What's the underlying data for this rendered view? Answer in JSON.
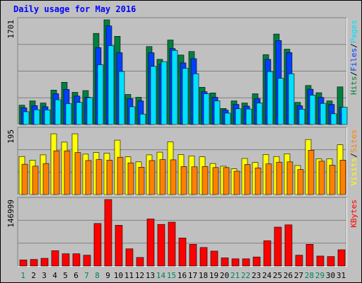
{
  "chart_data": [
    {
      "type": "bar",
      "title": "Daily usage for May 2016",
      "categories": [
        "1",
        "2",
        "3",
        "4",
        "5",
        "6",
        "7",
        "8",
        "9",
        "10",
        "11",
        "12",
        "13",
        "14",
        "15",
        "16",
        "17",
        "18",
        "19",
        "20",
        "21",
        "22",
        "23",
        "24",
        "25",
        "26",
        "27",
        "28",
        "29",
        "30",
        "31"
      ],
      "weekend_days": [
        "1",
        "7",
        "8",
        "14",
        "15",
        "21",
        "22",
        "28",
        "29"
      ],
      "ymax_label": "1701",
      "ylim": [
        0,
        1701
      ],
      "grid": true,
      "legend": [
        "Pages",
        "Files",
        "Hits"
      ],
      "legend_separator": "/",
      "colors": {
        "Hits": "#008040",
        "Files": "#0040ff",
        "Pages": "#00e0ff"
      },
      "series": [
        {
          "name": "Hits",
          "values": [
            314,
            384,
            349,
            558,
            686,
            523,
            552,
            1480,
            1701,
            1433,
            489,
            442,
            1267,
            1059,
            1372,
            1129,
            1186,
            605,
            514,
            261,
            384,
            349,
            500,
            1135,
            1470,
            1224,
            360,
            635,
            517,
            384,
            611
          ]
        },
        {
          "name": "Files",
          "values": [
            270,
            307,
            288,
            500,
            570,
            462,
            442,
            1249,
            1602,
            1166,
            419,
            384,
            1166,
            983,
            1233,
            1001,
            1070,
            532,
            442,
            233,
            326,
            299,
            419,
            1058,
            1364,
            1169,
            304,
            573,
            440,
            326,
            278
          ]
        },
        {
          "name": "Pages",
          "values": [
            208,
            240,
            238,
            402,
            340,
            360,
            437,
            970,
            1281,
            862,
            288,
            170,
            945,
            1022,
            1204,
            912,
            825,
            500,
            384,
            185,
            255,
            252,
            349,
            860,
            752,
            825,
            249,
            477,
            343,
            175,
            280
          ]
        }
      ]
    },
    {
      "type": "bar",
      "ymax_label": "195",
      "ylim": [
        0,
        195
      ],
      "grid": true,
      "legend": [
        "Sites",
        "Visits"
      ],
      "legend_separator": "/",
      "colors": {
        "Visits": "#ffff00",
        "Sites": "#ff8000"
      },
      "series": [
        {
          "name": "Visits",
          "values": [
            114,
            103,
            119,
            182,
            157,
            182,
            121,
            126,
            124,
            163,
            113,
            98,
            119,
            127,
            158,
            120,
            116,
            113,
            93,
            85,
            77,
            108,
            96,
            120,
            114,
            122,
            87,
            165,
            107,
            107,
            149
          ]
        },
        {
          "name": "Sites",
          "values": [
            91,
            85,
            93,
            131,
            131,
            126,
            102,
            105,
            103,
            112,
            95,
            82,
            102,
            105,
            104,
            84,
            83,
            84,
            81,
            81,
            70,
            90,
            80,
            92,
            97,
            98,
            75,
            133,
            100,
            88,
            103
          ]
        }
      ]
    },
    {
      "type": "bar",
      "ymax_label": "146999",
      "ylim": [
        0,
        146999
      ],
      "grid": true,
      "legend": [
        "KBytes"
      ],
      "colors": {
        "KBytes": "#ff0000"
      },
      "series": [
        {
          "name": "KBytes",
          "values": [
            13500,
            14500,
            17000,
            34000,
            27000,
            27000,
            24000,
            94000,
            146999,
            90000,
            38000,
            19000,
            104000,
            92000,
            97000,
            62000,
            48000,
            41000,
            33000,
            18000,
            16000,
            16000,
            20000,
            56000,
            86000,
            91000,
            24000,
            48000,
            22000,
            21000,
            36000
          ]
        }
      ]
    }
  ]
}
